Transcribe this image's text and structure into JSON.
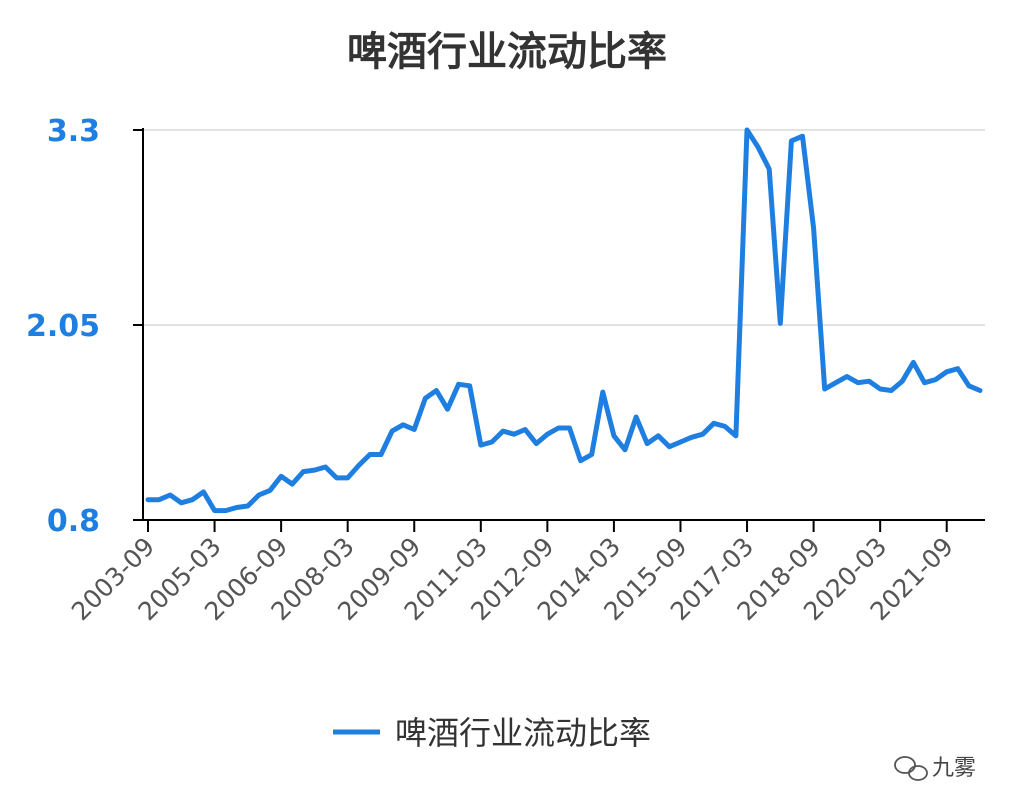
{
  "chart_data": {
    "type": "line",
    "title": "啤酒行业流动比率",
    "xlabel": "",
    "ylabel": "",
    "ylim": [
      0.8,
      3.3
    ],
    "yticks": [
      "0.8",
      "2.05",
      "3.3"
    ],
    "xticks": [
      {
        "label": "2003-09",
        "index": 0
      },
      {
        "label": "2005-03",
        "index": 6
      },
      {
        "label": "2006-09",
        "index": 12
      },
      {
        "label": "2008-03",
        "index": 18
      },
      {
        "label": "2009-09",
        "index": 24
      },
      {
        "label": "2011-03",
        "index": 30
      },
      {
        "label": "2012-09",
        "index": 36
      },
      {
        "label": "2014-03",
        "index": 42
      },
      {
        "label": "2015-09",
        "index": 48
      },
      {
        "label": "2017-03",
        "index": 54
      },
      {
        "label": "2018-09",
        "index": 60
      },
      {
        "label": "2020-03",
        "index": 66
      },
      {
        "label": "2021-09",
        "index": 72
      }
    ],
    "grid": true,
    "legend": "bottom",
    "series": [
      {
        "name": "啤酒行业流动比率",
        "color": "#1f7fe0",
        "values": [
          0.93,
          0.93,
          0.96,
          0.91,
          0.93,
          0.98,
          0.86,
          0.86,
          0.88,
          0.89,
          0.96,
          0.99,
          1.08,
          1.03,
          1.11,
          1.12,
          1.14,
          1.07,
          1.07,
          1.15,
          1.22,
          1.22,
          1.37,
          1.41,
          1.38,
          1.58,
          1.63,
          1.51,
          1.67,
          1.66,
          1.28,
          1.3,
          1.37,
          1.35,
          1.38,
          1.29,
          1.35,
          1.39,
          1.39,
          1.18,
          1.22,
          1.62,
          1.34,
          1.25,
          1.46,
          1.29,
          1.34,
          1.27,
          1.3,
          1.33,
          1.35,
          1.42,
          1.4,
          1.34,
          3.3,
          3.19,
          3.05,
          2.06,
          3.23,
          3.26,
          2.67,
          1.64,
          1.68,
          1.72,
          1.68,
          1.69,
          1.64,
          1.63,
          1.69,
          1.81,
          1.68,
          1.7,
          1.75,
          1.77,
          1.66,
          1.63
        ]
      }
    ]
  },
  "watermark": {
    "text": "九雾"
  }
}
